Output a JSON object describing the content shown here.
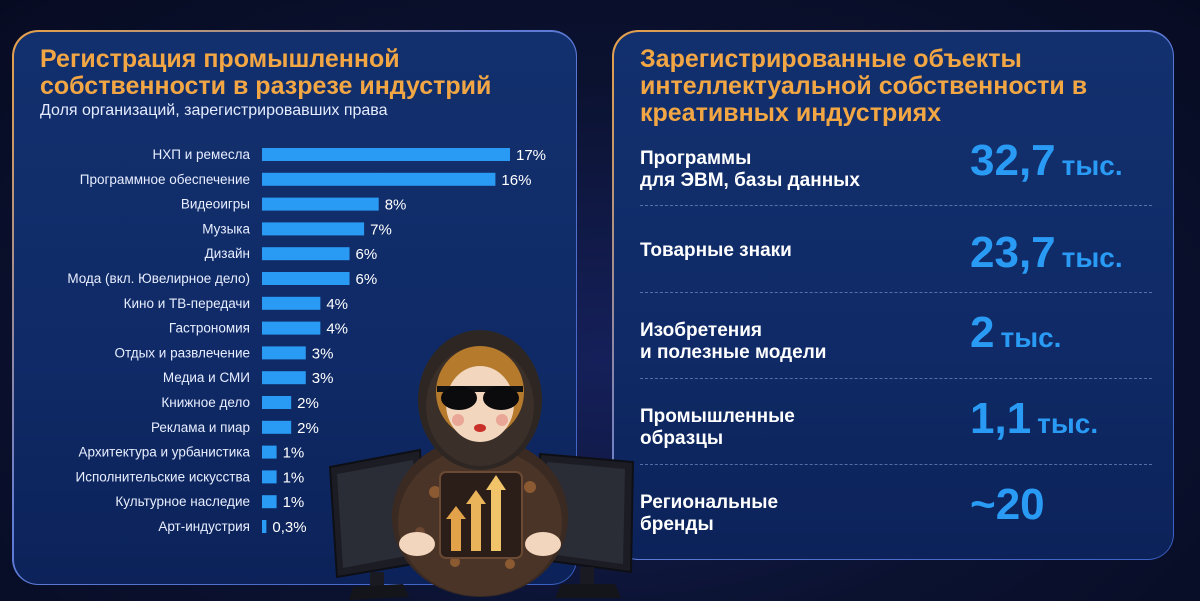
{
  "left_panel": {
    "title": "Регистрация промышленной собственности в разрезе индустрий",
    "subtitle": "Доля организаций, зарегистрировавших права"
  },
  "chart_data": {
    "type": "bar",
    "orientation": "horizontal",
    "categories": [
      "НХП и ремесла",
      "Программное обеспечение",
      "Видеоигры",
      "Музыка",
      "Дизайн",
      "Мода (вкл. Ювелирное дело)",
      "Кино и ТВ-передачи",
      "Гастрономия",
      "Отдых и развлечение",
      "Медиа и СМИ",
      "Книжное дело",
      "Реклама и пиар",
      "Архитектура и урбанистика",
      "Исполнительские искусства",
      "Культурное наследие",
      "Арт-индустрия"
    ],
    "values": [
      17,
      16,
      8,
      7,
      6,
      6,
      4,
      4,
      3,
      3,
      2,
      2,
      1,
      1,
      1,
      0.3
    ],
    "value_labels": [
      "17%",
      "16%",
      "8%",
      "7%",
      "6%",
      "6%",
      "4%",
      "4%",
      "3%",
      "3%",
      "2%",
      "2%",
      "1%",
      "1%",
      "1%",
      "0,3%"
    ],
    "xlim": [
      0,
      17
    ],
    "grid": false,
    "legend": "none",
    "bar_color": "#2a9bf5"
  },
  "right_panel": {
    "title": "Зарегистрированные объекты интеллектуальной собственности в креативных индустриях",
    "items": [
      {
        "label": "Программы\nдля ЭВМ, базы данных",
        "value": "32,7",
        "unit": "тыс."
      },
      {
        "label": "Товарные знаки",
        "value": "23,7",
        "unit": "тыс."
      },
      {
        "label": "Изобретения\nи полезные модели",
        "value": "2",
        "unit": "тыс."
      },
      {
        "label": "Промышленные\nобразцы",
        "value": "1,1",
        "unit": "тыс."
      },
      {
        "label": "Региональные\nбренды",
        "value": "~20",
        "unit": ""
      }
    ]
  },
  "colors": {
    "accent_orange": "#f2a744",
    "accent_blue": "#2a9bf5",
    "panel_bg": "#0f2a66"
  },
  "icons": {
    "mascot": "matryoshka-with-sunglasses-and-monitors-illustration"
  }
}
